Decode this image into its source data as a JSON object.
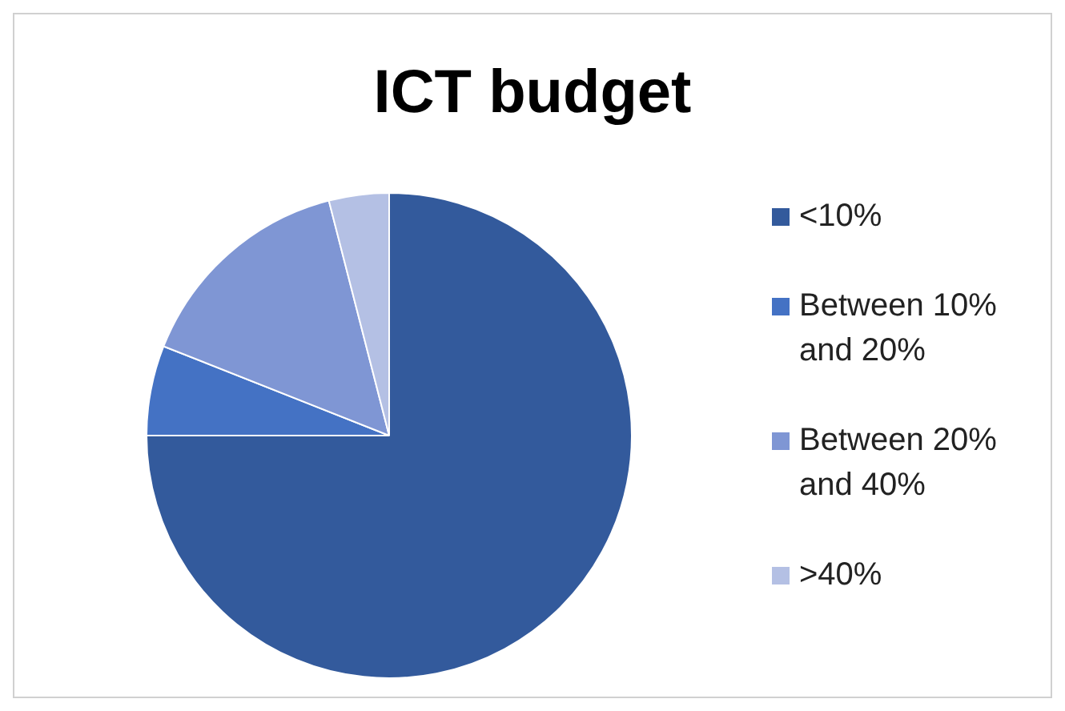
{
  "chart_data": {
    "type": "pie",
    "title": "ICT budget",
    "categories": [
      "<10%",
      "Between 10% and 20%",
      "Between 20% and 40%",
      ">40%"
    ],
    "values": [
      75,
      6,
      15,
      4
    ],
    "colors": [
      "#335a9c",
      "#4472c4",
      "#7f96d4",
      "#b4c0e4"
    ],
    "legend": "right"
  }
}
